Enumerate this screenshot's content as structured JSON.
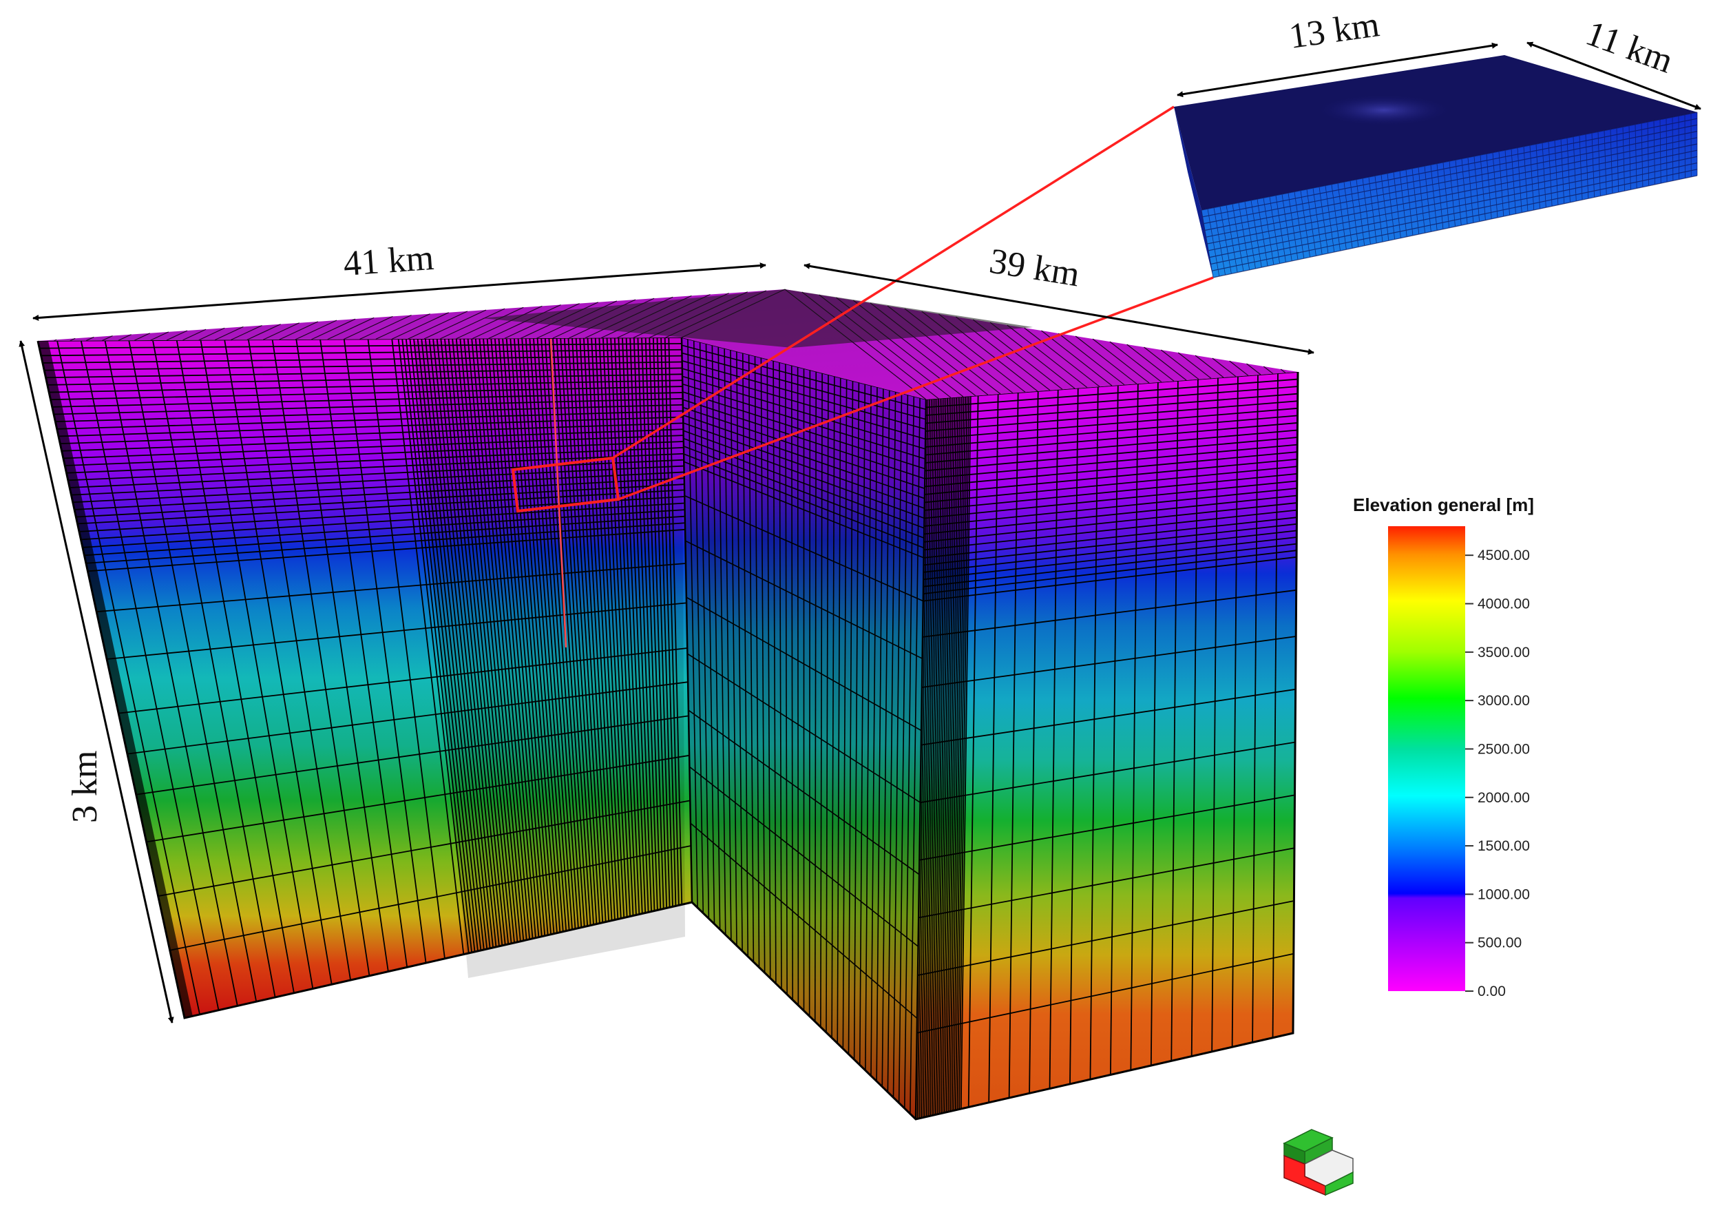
{
  "colors": {
    "mesh_line": "#000000",
    "highlight": "#ff2020",
    "dimension": "#000000",
    "colormap": [
      "#ff00ff",
      "#9a00ff",
      "#0000ff",
      "#0080ff",
      "#00ffff",
      "#00c8a0",
      "#00ff00",
      "#a0ff00",
      "#ffff00",
      "#ff9000",
      "#ff2000"
    ]
  },
  "dimensions": {
    "top_left": "41 km",
    "top_right": "39 km",
    "vertical": "3 km",
    "inset_length": "13 km",
    "inset_width": "11 km"
  },
  "legend": {
    "title": "Elevation general [m]",
    "ticks": [
      "4500.00",
      "4000.00",
      "3500.00",
      "3000.00",
      "2500.00",
      "2000.00",
      "1500.00",
      "1000.00",
      "500.00",
      "0.00"
    ],
    "range": [
      0,
      4800
    ]
  },
  "icons": {
    "orientation": "orientation-cube-icon"
  }
}
